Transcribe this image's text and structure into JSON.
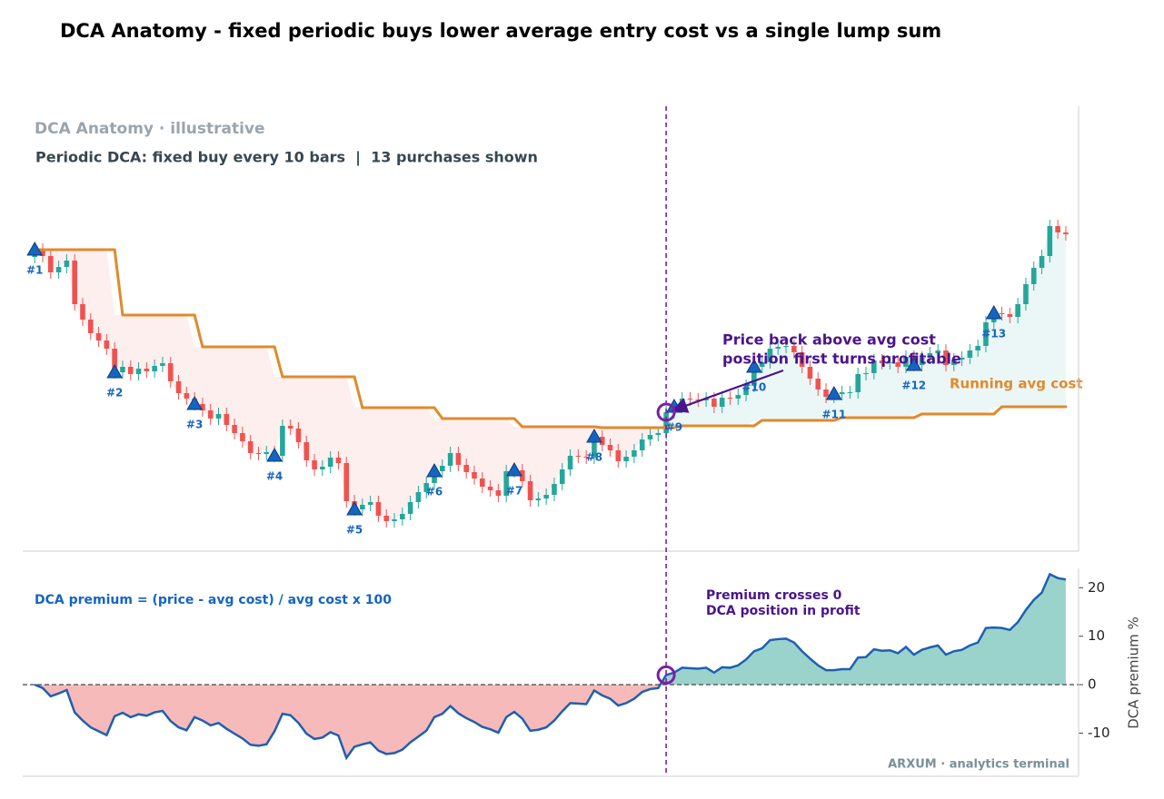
{
  "title": "DCA Anatomy - fixed periodic buys lower average entry cost vs a single lump sum",
  "chart_data": [
    {
      "type": "candlestick",
      "panel_title": "DCA Anatomy · illustrative",
      "subtitle": "Periodic DCA: fixed buy every 10 bars  |  13 purchases shown",
      "xlim": [
        -1.5,
        130.6
      ],
      "ylim": [
        71.7,
        120.5
      ],
      "up_color": "#26a69a",
      "down_color": "#ef5350",
      "open": [
        103.9,
        104.7,
        104.0,
        102.2,
        102.8,
        103.5,
        98.7,
        97.0,
        95.5,
        94.7,
        93.8,
        91.2,
        91.8,
        91.0,
        91.6,
        91.3,
        91.9,
        92.2,
        90.2,
        88.9,
        88.3,
        87.7,
        87.0,
        86.1,
        86.6,
        85.4,
        84.5,
        83.6,
        82.3,
        82.2,
        82.4,
        82.0,
        85.3,
        85.0,
        83.5,
        81.5,
        80.5,
        80.8,
        81.8,
        81.2,
        77.0,
        76.1,
        76.6,
        76.9,
        75.4,
        74.8,
        75.0,
        75.6,
        76.9,
        78.0,
        79.0,
        80.3,
        80.9,
        82.3,
        81.0,
        80.2,
        79.5,
        78.6,
        78.2,
        77.6,
        80.3,
        80.4,
        79.2,
        77.1,
        77.3,
        77.7,
        78.9,
        80.5,
        82.0,
        81.9,
        81.8,
        84.1,
        83.2,
        82.6,
        81.4,
        81.9,
        82.6,
        83.8,
        84.3,
        84.5,
        86.8,
        87.4,
        88.3,
        88.2,
        88.1,
        88.3,
        87.4,
        88.4,
        88.3,
        88.7,
        89.7,
        91.8,
        92.3,
        93.8,
        94.0,
        94.1,
        93.4,
        91.8,
        90.5,
        89.3,
        88.5,
        88.8,
        89.0,
        89.0,
        91.0,
        91.1,
        92.5,
        92.2,
        92.3,
        91.8,
        92.9,
        92.0,
        92.8,
        93.3,
        93.6,
        92.0,
        92.6,
        92.8,
        93.6,
        94.1,
        96.7,
        97.7,
        97.6,
        97.3,
        98.7,
        100.9,
        102.7,
        104.0,
        107.3,
        106.6
      ],
      "high": [
        105.4,
        105.4,
        104.7,
        103.5,
        104.2,
        104.2,
        99.4,
        97.7,
        96.2,
        95.4,
        94.5,
        92.5,
        92.5,
        92.3,
        92.3,
        92.6,
        92.9,
        92.9,
        90.9,
        89.6,
        89.0,
        88.4,
        87.7,
        87.3,
        87.3,
        86.1,
        85.2,
        84.3,
        83.0,
        83.1,
        83.1,
        86.0,
        86.0,
        85.7,
        84.2,
        82.2,
        81.5,
        82.5,
        82.5,
        81.9,
        77.7,
        77.3,
        77.6,
        77.6,
        76.1,
        75.7,
        76.3,
        77.6,
        78.7,
        79.7,
        81.0,
        81.6,
        83.0,
        83.0,
        81.7,
        80.9,
        80.2,
        79.3,
        78.9,
        81.0,
        81.1,
        81.1,
        79.9,
        78.0,
        78.4,
        79.6,
        81.2,
        82.7,
        82.7,
        82.6,
        84.8,
        84.8,
        83.9,
        83.3,
        82.6,
        83.3,
        84.5,
        85.0,
        85.2,
        87.5,
        88.1,
        89.0,
        89.0,
        88.9,
        89.0,
        89.0,
        89.1,
        89.1,
        89.4,
        90.4,
        92.5,
        93.0,
        94.5,
        94.7,
        94.8,
        94.8,
        94.1,
        92.5,
        91.2,
        90.0,
        89.5,
        89.7,
        89.7,
        91.7,
        91.8,
        93.2,
        93.2,
        93.0,
        93.0,
        93.6,
        93.6,
        93.5,
        94.0,
        94.3,
        94.3,
        93.3,
        93.5,
        94.3,
        94.8,
        97.4,
        98.4,
        98.4,
        98.3,
        99.4,
        101.6,
        103.4,
        104.7,
        108.0,
        108.0,
        107.3
      ],
      "low": [
        103.2,
        103.3,
        101.5,
        101.5,
        102.1,
        98.0,
        96.3,
        94.8,
        94.0,
        93.1,
        90.5,
        90.5,
        90.3,
        90.3,
        90.6,
        90.6,
        91.2,
        89.5,
        88.2,
        87.6,
        87.0,
        86.3,
        85.4,
        85.4,
        84.7,
        83.8,
        82.9,
        81.6,
        81.5,
        81.5,
        81.3,
        81.3,
        84.3,
        82.8,
        80.8,
        79.8,
        79.8,
        80.1,
        80.5,
        76.3,
        75.4,
        75.4,
        75.9,
        74.7,
        74.1,
        74.1,
        74.3,
        74.9,
        76.2,
        77.3,
        78.3,
        79.6,
        80.2,
        80.3,
        79.5,
        78.8,
        77.9,
        77.5,
        76.9,
        76.9,
        79.6,
        78.5,
        76.4,
        76.4,
        76.6,
        77.0,
        78.2,
        79.8,
        81.2,
        81.1,
        81.1,
        82.5,
        81.9,
        80.7,
        80.7,
        81.2,
        81.9,
        83.1,
        83.6,
        83.8,
        86.1,
        86.7,
        87.5,
        87.4,
        87.4,
        86.7,
        86.7,
        87.6,
        87.6,
        88.0,
        89.0,
        91.1,
        91.6,
        93.1,
        93.3,
        92.7,
        91.1,
        89.8,
        88.6,
        87.8,
        87.8,
        88.1,
        88.3,
        88.3,
        90.3,
        90.4,
        91.5,
        91.5,
        91.1,
        91.1,
        91.3,
        91.3,
        92.1,
        92.6,
        91.3,
        91.3,
        91.9,
        92.1,
        92.9,
        93.4,
        96.0,
        96.9,
        96.6,
        96.6,
        98.0,
        100.2,
        102.0,
        103.3,
        105.9,
        105.7
      ],
      "close": [
        104.7,
        104.0,
        102.2,
        102.8,
        103.5,
        98.7,
        97.0,
        95.5,
        94.7,
        93.8,
        91.2,
        91.8,
        91.0,
        91.6,
        91.3,
        91.9,
        92.2,
        90.2,
        88.9,
        88.3,
        87.7,
        87.0,
        86.1,
        86.6,
        85.4,
        84.5,
        83.6,
        82.3,
        82.2,
        82.4,
        82.0,
        85.3,
        85.0,
        83.5,
        81.5,
        80.5,
        80.8,
        81.8,
        81.2,
        77.0,
        76.1,
        76.6,
        76.9,
        75.4,
        74.8,
        75.0,
        75.6,
        76.9,
        78.0,
        79.0,
        80.3,
        80.9,
        82.3,
        81.0,
        80.2,
        79.5,
        78.6,
        78.2,
        77.6,
        80.3,
        80.4,
        79.2,
        77.1,
        77.3,
        77.7,
        78.9,
        80.5,
        82.0,
        81.9,
        81.8,
        84.1,
        83.2,
        82.6,
        81.4,
        81.9,
        82.6,
        83.8,
        84.3,
        84.5,
        86.8,
        87.4,
        88.3,
        88.2,
        88.1,
        88.3,
        87.4,
        88.4,
        88.3,
        88.7,
        89.7,
        91.8,
        92.3,
        93.8,
        94.0,
        94.1,
        93.4,
        91.8,
        90.5,
        89.3,
        88.5,
        88.8,
        89.0,
        89.0,
        91.0,
        91.1,
        92.5,
        92.2,
        92.3,
        91.8,
        92.9,
        92.0,
        92.8,
        93.3,
        93.6,
        92.0,
        92.6,
        92.8,
        93.6,
        94.1,
        96.7,
        97.7,
        97.6,
        97.3,
        98.7,
        100.9,
        102.7,
        104.0,
        107.3,
        106.6,
        106.4
      ],
      "purchases": {
        "bars": [
          0,
          10,
          20,
          30,
          40,
          50,
          60,
          70,
          80,
          90,
          100,
          110,
          120
        ],
        "values": [
          104.7,
          91.2,
          87.7,
          82.0,
          76.1,
          80.3,
          80.4,
          84.1,
          87.4,
          91.8,
          88.8,
          92.0,
          97.7
        ],
        "labels": [
          "#1",
          "#2",
          "#3",
          "#4",
          "#5",
          "#6",
          "#7",
          "#8",
          "#9",
          "#10",
          "#11",
          "#12",
          "#13"
        ],
        "color": "#1565c0"
      },
      "avg_cost": {
        "name": "Running avg cost",
        "color": "#e08a2c",
        "values": [
          104.7,
          97.5,
          94.0,
          90.7,
          87.3,
          86.1,
          85.2,
          85.1,
          85.3,
          85.9,
          86.2,
          86.6,
          87.4
        ]
      },
      "cross_bar": 79,
      "cross_color": "#7b1fa2",
      "annotation": [
        "Price back above avg cost",
        "position first turns profitable"
      ]
    },
    {
      "type": "area",
      "xlim": [
        -1.5,
        130.6
      ],
      "ylim": [
        -18.9,
        24
      ],
      "yticks": [
        -10,
        0,
        10,
        20
      ],
      "ylabel": "DCA premium %",
      "formula": "DCA premium = (price - avg cost) / avg cost x 100",
      "line_color": "#1f5fb0",
      "pos_color": "#9ad3cc",
      "neg_color": "#f7baba",
      "values": [
        0,
        -0.7,
        -2.4,
        -1.8,
        -1.1,
        -5.7,
        -7.4,
        -8.8,
        -9.6,
        -10.4,
        -6.5,
        -5.8,
        -6.7,
        -6.1,
        -6.4,
        -5.7,
        -5.4,
        -7.5,
        -8.8,
        -9.4,
        -6.7,
        -7.4,
        -8.4,
        -7.9,
        -9.1,
        -10.1,
        -11.1,
        -12.4,
        -12.6,
        -12.3,
        -9.6,
        -6.0,
        -6.3,
        -7.9,
        -10.1,
        -11.2,
        -10.9,
        -9.8,
        -10.5,
        -15.1,
        -12.8,
        -12.3,
        -11.9,
        -13.6,
        -14.3,
        -14.1,
        -13.4,
        -11.9,
        -10.7,
        -9.5,
        -6.7,
        -6.0,
        -4.4,
        -5.9,
        -6.9,
        -7.7,
        -8.7,
        -9.2,
        -9.9,
        -6.7,
        -5.6,
        -7.0,
        -9.5,
        -9.3,
        -8.8,
        -7.4,
        -5.5,
        -3.8,
        -3.9,
        -4.0,
        -1.2,
        -2.2,
        -2.9,
        -4.3,
        -3.8,
        -2.9,
        -1.5,
        -0.9,
        -0.7,
        2.0,
        2.5,
        3.5,
        3.4,
        3.3,
        3.5,
        2.5,
        3.6,
        3.5,
        4.0,
        5.2,
        6.9,
        7.5,
        9.2,
        9.4,
        9.5,
        8.7,
        6.9,
        5.4,
        4.0,
        3.0,
        3.0,
        3.2,
        3.2,
        5.6,
        5.7,
        7.3,
        7.0,
        7.1,
        6.5,
        7.8,
        6.2,
        7.2,
        7.7,
        8.1,
        6.2,
        6.9,
        7.2,
        8.1,
        8.7,
        11.7,
        11.8,
        11.7,
        11.3,
        12.9,
        15.4,
        17.5,
        19.0,
        22.8,
        22.0,
        21.7
      ],
      "annotation": [
        "Premium crosses 0",
        "DCA position in profit"
      ],
      "watermark": "ARXUM · analytics terminal"
    }
  ]
}
